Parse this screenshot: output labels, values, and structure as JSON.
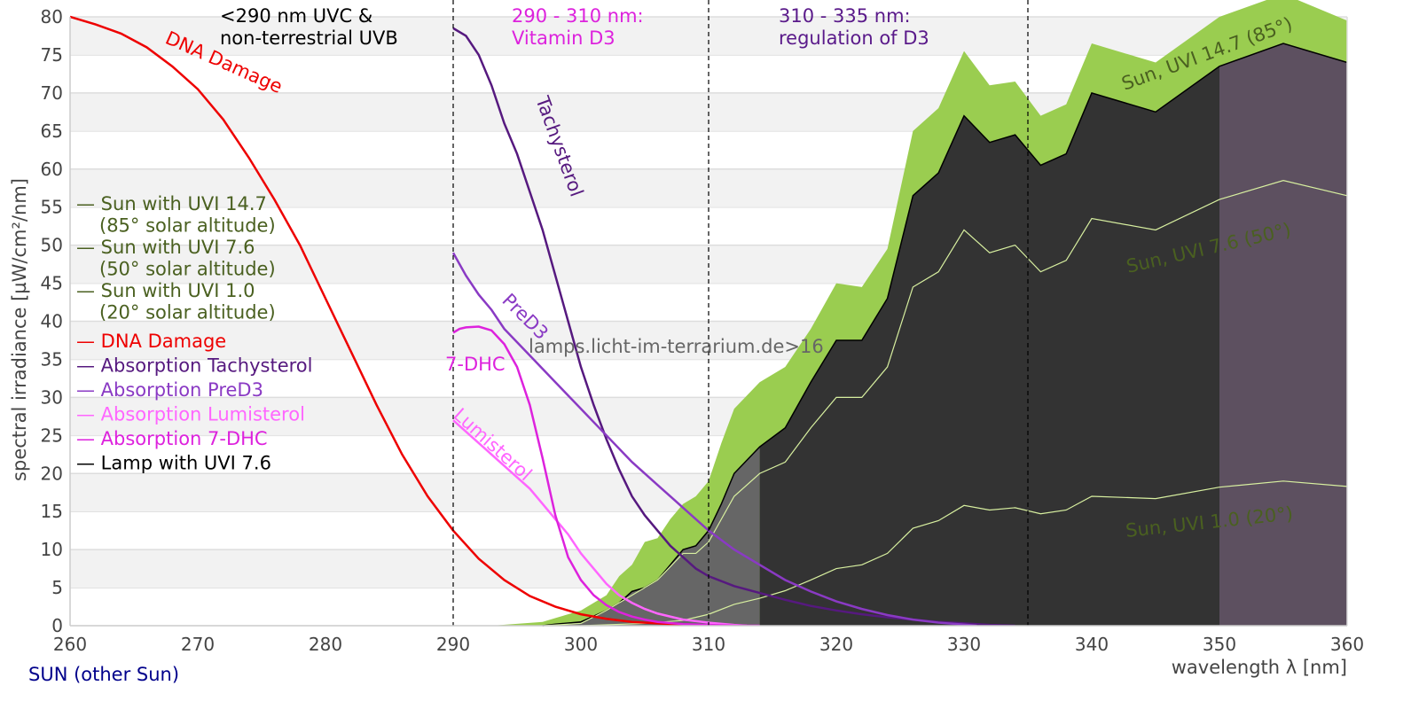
{
  "chart_data": {
    "type": "area",
    "title": "",
    "xlabel": "wavelength λ [nm]",
    "ylabel": "spectral irradiance [µW/cm²/nm]",
    "xlim": [
      260,
      360
    ],
    "ylim": [
      0,
      80
    ],
    "xticks": [
      "260",
      "270",
      "280",
      "290",
      "300",
      "310",
      "320",
      "330",
      "340",
      "350",
      "360"
    ],
    "yticks": [
      "0",
      "5",
      "10",
      "15",
      "20",
      "25",
      "30",
      "35",
      "40",
      "45",
      "50",
      "55",
      "60",
      "65",
      "70",
      "75",
      "80"
    ],
    "grid": "horizontal bands",
    "footer": "SUN (other Sun)",
    "watermark": "lamps.licht-im-terrarium.de>16",
    "region_lines": [
      290,
      310,
      335
    ],
    "region_labels": [
      {
        "id": "uvc",
        "lines": [
          "<290 nm UVC &",
          "non-terrestrial UVB"
        ],
        "color": "#000000"
      },
      {
        "id": "d3",
        "lines": [
          "290 - 310 nm:",
          "Vitamin D3"
        ],
        "color": "#dd22dd"
      },
      {
        "id": "reg",
        "lines": [
          "310 - 335 nm:",
          "regulation of D3"
        ],
        "color": "#5a1a8a"
      }
    ],
    "legend": [
      {
        "label": "Sun with UVI 14.7",
        "sub": " (85° solar altitude)",
        "color": "#4a6020"
      },
      {
        "label": "Sun with UVI 7.6",
        "sub": " (50° solar altitude)",
        "color": "#4a6020"
      },
      {
        "label": "Sun with UVI 1.0",
        "sub": " (20° solar altitude)",
        "color": "#4a6020"
      },
      {
        "label": "DNA Damage",
        "color": "#ee0000"
      },
      {
        "label": "Absorption Tachysterol",
        "color": "#56197f"
      },
      {
        "label": "Absorption PreD3",
        "color": "#8a3ac4"
      },
      {
        "label": "Absorption Lumisterol",
        "color": "#ff66ff"
      },
      {
        "label": "Absorption 7-DHC",
        "color": "#dd22dd"
      },
      {
        "label": "Lamp with UVI 7.6",
        "color": "#000000"
      }
    ],
    "curve_labels": {
      "dna": "DNA Damage",
      "tachy": "Tachysterol",
      "pred3": "PreD3",
      "dhc": "7-DHC",
      "lumi": "Lumisterol",
      "sun147": "Sun, UVI 14.7 (85°)",
      "sun76": "Sun, UVI 7.6 (50°)",
      "sun10": "Sun, UVI 1.0 (20°)"
    },
    "colors": {
      "sun_fill": "#9acd50",
      "lamp_fill": "#333333",
      "lamp_fill_uvb": "#666666",
      "lamp_fill_uva2": "#5d5060",
      "sun_line": "#d8f0a0",
      "band": "#f2f2f2",
      "gridline": "#dddddd"
    },
    "series": [
      {
        "name": "Sun with UVI 14.7",
        "kind": "area",
        "x": [
          293,
          297,
          298,
          300,
          302,
          303,
          304,
          305,
          306,
          307,
          308,
          309,
          310,
          311,
          312,
          314,
          316,
          318,
          320,
          322,
          324,
          326,
          328,
          330,
          332,
          334,
          336,
          338,
          340,
          345,
          350,
          355,
          360
        ],
        "y": [
          0,
          0.5,
          1,
          2,
          4,
          6.5,
          8,
          11,
          11.5,
          14,
          16,
          17,
          19,
          24,
          28.5,
          32,
          34,
          39,
          45,
          44.5,
          49.5,
          65,
          68,
          75.5,
          71,
          71.5,
          67,
          68.5,
          76.5,
          74,
          80,
          83,
          79.5
        ]
      },
      {
        "name": "Lamp with UVI 7.6",
        "kind": "area",
        "x": [
          297,
          298,
          300,
          302,
          303,
          304,
          305,
          306,
          307,
          308,
          309,
          310,
          311,
          312,
          314,
          316,
          318,
          320,
          322,
          324,
          326,
          328,
          330,
          332,
          334,
          336,
          338,
          340,
          345,
          350,
          355,
          360
        ],
        "y": [
          0,
          0.2,
          0.5,
          2,
          3,
          4.5,
          5,
          6,
          8,
          10,
          10.5,
          12.5,
          16,
          20,
          23.5,
          26,
          32,
          37.5,
          37.5,
          43,
          56.5,
          59.5,
          67,
          63.5,
          64.5,
          60.5,
          62,
          70,
          67.5,
          73.5,
          76.5,
          74
        ]
      },
      {
        "name": "Sun with UVI 7.6",
        "kind": "line",
        "x": [
          297,
          300,
          302,
          304,
          306,
          308,
          309,
          310,
          312,
          314,
          316,
          318,
          320,
          322,
          324,
          326,
          328,
          330,
          332,
          334,
          336,
          338,
          340,
          345,
          350,
          355,
          360
        ],
        "y": [
          0,
          0.3,
          2,
          4,
          6,
          9.5,
          9.5,
          11,
          17,
          20,
          21.5,
          26,
          30,
          30,
          34,
          44.5,
          46.5,
          52,
          49,
          50,
          46.5,
          48,
          53.5,
          52,
          56,
          58.5,
          56.5
        ]
      },
      {
        "name": "Sun with UVI 1.0",
        "kind": "line",
        "x": [
          300,
          305,
          308,
          310,
          312,
          314,
          316,
          318,
          320,
          322,
          324,
          326,
          328,
          330,
          332,
          334,
          336,
          338,
          340,
          345,
          350,
          355,
          360
        ],
        "y": [
          0,
          0.3,
          0.7,
          1.5,
          2.8,
          3.6,
          4.6,
          6,
          7.5,
          8,
          9.5,
          12.8,
          13.8,
          15.8,
          15.2,
          15.5,
          14.7,
          15.2,
          17,
          16.7,
          18.2,
          19,
          18.3
        ]
      },
      {
        "name": "DNA Damage",
        "kind": "line",
        "x": [
          260,
          262,
          264,
          266,
          268,
          270,
          272,
          274,
          276,
          278,
          280,
          282,
          284,
          286,
          288,
          290,
          292,
          294,
          296,
          298,
          300,
          302,
          304,
          306,
          308,
          310
        ],
        "y": [
          80,
          79,
          77.8,
          76,
          73.5,
          70.5,
          66.5,
          61.5,
          56,
          50,
          43,
          36,
          29,
          22.5,
          17,
          12.5,
          8.8,
          6,
          3.9,
          2.5,
          1.5,
          0.9,
          0.5,
          0.3,
          0.1,
          0
        ]
      },
      {
        "name": "Absorption Tachysterol",
        "kind": "line",
        "x": [
          290,
          291,
          292,
          293,
          294,
          295,
          296,
          297,
          298,
          299,
          300,
          301,
          302,
          303,
          304,
          305,
          306,
          307,
          308,
          309,
          310,
          312,
          314,
          316,
          318,
          320,
          322,
          324,
          326,
          328,
          330,
          332,
          334
        ],
        "y": [
          78.5,
          77.5,
          75,
          71,
          66,
          62,
          57,
          52,
          46,
          40,
          34,
          29,
          24.5,
          20.5,
          17,
          14.5,
          12.5,
          10.5,
          9,
          7.5,
          6.5,
          5.2,
          4.3,
          3.4,
          2.6,
          2,
          1.5,
          1.1,
          0.8,
          0.5,
          0.3,
          0.1,
          0
        ]
      },
      {
        "name": "Absorption PreD3",
        "kind": "line",
        "x": [
          290,
          291,
          292,
          293,
          294,
          296,
          298,
          300,
          302,
          304,
          306,
          308,
          310,
          312,
          314,
          316,
          318,
          320,
          322,
          324,
          326,
          328,
          330,
          331
        ],
        "y": [
          49,
          46,
          43.5,
          41.5,
          39,
          35.5,
          32,
          28.5,
          25,
          21.5,
          18.5,
          15.5,
          12.5,
          10,
          8,
          6,
          4.5,
          3.2,
          2.2,
          1.4,
          0.8,
          0.4,
          0.15,
          0
        ]
      },
      {
        "name": "Absorption Lumisterol",
        "kind": "line",
        "x": [
          290,
          291,
          292,
          293,
          294,
          295,
          296,
          297,
          298,
          299,
          300,
          301,
          302,
          303,
          304,
          305,
          306,
          308,
          310,
          312,
          313
        ],
        "y": [
          27,
          25.5,
          24,
          22.5,
          21,
          19.5,
          18,
          16,
          14,
          12,
          9.5,
          7.5,
          5.5,
          4,
          3,
          2.2,
          1.6,
          0.8,
          0.4,
          0.1,
          0
        ]
      },
      {
        "name": "Absorption 7-DHC",
        "kind": "line",
        "x": [
          290,
          290.5,
          291,
          292,
          293,
          294,
          295,
          296,
          297,
          298,
          299,
          300,
          301,
          302,
          303,
          304,
          305,
          306,
          308,
          310,
          312,
          314
        ],
        "y": [
          38.5,
          39,
          39.2,
          39.3,
          38.8,
          37,
          34,
          29,
          22,
          14.5,
          9,
          6,
          4,
          2.7,
          1.8,
          1.2,
          0.8,
          0.5,
          0.2,
          0.1,
          0,
          0
        ]
      }
    ]
  }
}
